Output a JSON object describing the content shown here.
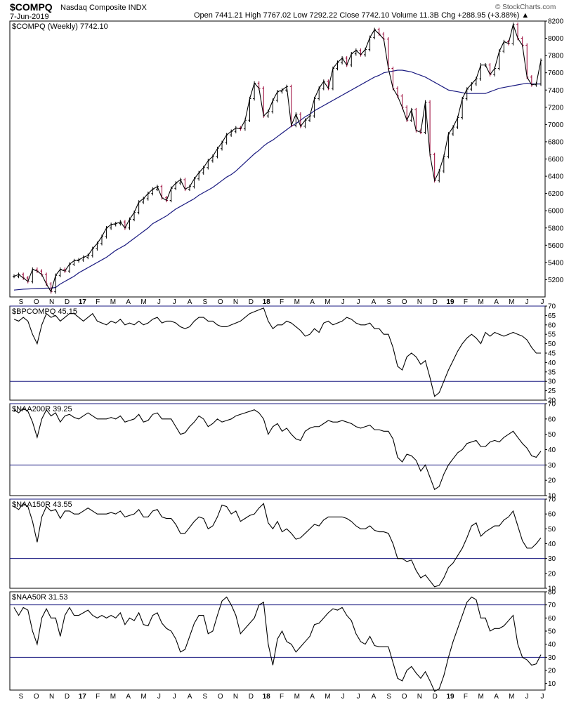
{
  "header": {
    "symbol": "$COMPQ",
    "name": "Nasdaq Composite INDX",
    "date": "7-Jun-2019",
    "quote": "Open 7441.21  High 7767.02  Low 7292.22  Close 7742.10  Volume 11.3B  Chg +288.95 (+3.88%) ▲",
    "source": "© StockCharts.com"
  },
  "chart_data": [
    {
      "type": "line",
      "title": "$COMPQ (Weekly) 7742.10",
      "ylim": [
        5000,
        8200
      ],
      "yticks": [
        5200,
        5400,
        5600,
        5800,
        6000,
        6200,
        6400,
        6600,
        6800,
        7000,
        7200,
        7400,
        7600,
        7800,
        8000,
        8200
      ],
      "series": [
        {
          "values": [
            5240,
            5260,
            5220,
            5180,
            5320,
            5300,
            5260,
            5150,
            5060,
            5250,
            5320,
            5300,
            5380,
            5420,
            5430,
            5460,
            5480,
            5560,
            5620,
            5700,
            5800,
            5840,
            5850,
            5870,
            5800,
            5900,
            5980,
            6100,
            6140,
            6200,
            6250,
            6280,
            6150,
            6120,
            6260,
            6320,
            6360,
            6250,
            6280,
            6370,
            6440,
            6500,
            6580,
            6630,
            6720,
            6790,
            6880,
            6920,
            6960,
            6950,
            7050,
            7300,
            7480,
            7420,
            7100,
            7150,
            7280,
            7380,
            7400,
            7440,
            6990,
            7120,
            6980,
            7050,
            7100,
            7300,
            7420,
            7500,
            7420,
            7650,
            7720,
            7770,
            7690,
            7820,
            7860,
            7810,
            7870,
            8010,
            8100,
            8050,
            7990,
            7650,
            7420,
            7330,
            7200,
            7050,
            7170,
            6930,
            6910,
            7260,
            6650,
            6350,
            6460,
            6630,
            6890,
            6970,
            7080,
            7300,
            7410,
            7470,
            7530,
            7690,
            7690,
            7580,
            7650,
            7850,
            7960,
            7940,
            8160,
            8000,
            7920,
            7550,
            7460,
            7470,
            7743
          ]
        },
        {
          "values": [
            5080,
            5085,
            5090,
            5092,
            5095,
            5098,
            5100,
            5102,
            5103,
            5110,
            5150,
            5180,
            5210,
            5240,
            5280,
            5310,
            5340,
            5370,
            5400,
            5430,
            5460,
            5500,
            5540,
            5570,
            5600,
            5640,
            5680,
            5720,
            5760,
            5800,
            5850,
            5880,
            5910,
            5940,
            5980,
            6020,
            6050,
            6080,
            6110,
            6140,
            6180,
            6210,
            6240,
            6270,
            6310,
            6350,
            6390,
            6420,
            6460,
            6510,
            6560,
            6610,
            6660,
            6700,
            6750,
            6790,
            6820,
            6860,
            6900,
            6940,
            6980,
            7010,
            7050,
            7090,
            7120,
            7160,
            7190,
            7220,
            7250,
            7280,
            7310,
            7340,
            7370,
            7400,
            7430,
            7460,
            7490,
            7520,
            7550,
            7570,
            7600,
            7610,
            7620,
            7630,
            7630,
            7620,
            7610,
            7590,
            7570,
            7550,
            7520,
            7490,
            7460,
            7430,
            7400,
            7390,
            7380,
            7370,
            7360,
            7360,
            7360,
            7360,
            7360,
            7380,
            7400,
            7420,
            7430,
            7440,
            7450,
            7460,
            7470,
            7480,
            7470,
            7470,
            7470
          ]
        }
      ]
    },
    {
      "type": "line",
      "title": "$BPCOMPQ 45.15",
      "ylim": [
        20,
        70
      ],
      "yticks": [
        20,
        25,
        30,
        35,
        40,
        45,
        50,
        55,
        60,
        65,
        70
      ],
      "series": [
        {
          "values": [
            63,
            62,
            64,
            62,
            55,
            50,
            60,
            66,
            64,
            65,
            62,
            64,
            66,
            66,
            64,
            62,
            64,
            66,
            62,
            61,
            60,
            62,
            61,
            63,
            60,
            61,
            60,
            62,
            60,
            61,
            63,
            64,
            61,
            62,
            62,
            61,
            59,
            58,
            59,
            62,
            64,
            64,
            62,
            62,
            60,
            59,
            59,
            60,
            61,
            62,
            64,
            66,
            67,
            68,
            69,
            62,
            58,
            60,
            60,
            62,
            61,
            59,
            57,
            54,
            55,
            58,
            56,
            61,
            62,
            60,
            61,
            62,
            64,
            63,
            61,
            60,
            60,
            61,
            58,
            58,
            55,
            55,
            48,
            38,
            36,
            43,
            45,
            43,
            39,
            41,
            32,
            22,
            24,
            30,
            36,
            41,
            46,
            50,
            53,
            55,
            53,
            50,
            56,
            54,
            56,
            55,
            54,
            55,
            56,
            55,
            54,
            52,
            48,
            45,
            45
          ]
        }
      ]
    },
    {
      "type": "line",
      "title": "$NAA200R 39.25",
      "ylim": [
        10,
        70
      ],
      "yticks": [
        10,
        20,
        30,
        40,
        50,
        60,
        70
      ],
      "series": [
        {
          "values": [
            66,
            64,
            67,
            65,
            58,
            48,
            60,
            66,
            62,
            64,
            58,
            62,
            63,
            61,
            60,
            62,
            64,
            62,
            60,
            60,
            60,
            61,
            60,
            62,
            58,
            59,
            60,
            63,
            58,
            59,
            63,
            64,
            60,
            60,
            60,
            55,
            50,
            51,
            55,
            58,
            62,
            60,
            55,
            57,
            60,
            58,
            59,
            60,
            62,
            63,
            64,
            65,
            66,
            64,
            60,
            50,
            55,
            57,
            52,
            54,
            50,
            47,
            46,
            52,
            54,
            55,
            55,
            57,
            59,
            58,
            58,
            59,
            58,
            57,
            55,
            54,
            55,
            56,
            53,
            53,
            52,
            52,
            47,
            35,
            32,
            37,
            36,
            33,
            26,
            30,
            22,
            14,
            16,
            24,
            30,
            34,
            38,
            40,
            44,
            45,
            46,
            42,
            42,
            45,
            46,
            45,
            48,
            50,
            52,
            48,
            44,
            41,
            36,
            35,
            39
          ]
        }
      ]
    },
    {
      "type": "line",
      "title": "$NAA150R 43.55",
      "ylim": [
        10,
        70
      ],
      "yticks": [
        10,
        20,
        30,
        40,
        50,
        60,
        70
      ],
      "series": [
        {
          "values": [
            65,
            63,
            67,
            65,
            55,
            41,
            58,
            65,
            62,
            63,
            57,
            62,
            62,
            60,
            60,
            62,
            64,
            62,
            60,
            60,
            60,
            61,
            60,
            62,
            58,
            59,
            60,
            63,
            58,
            58,
            62,
            63,
            58,
            57,
            57,
            53,
            47,
            47,
            51,
            55,
            58,
            57,
            50,
            52,
            58,
            66,
            65,
            60,
            62,
            55,
            57,
            59,
            60,
            64,
            67,
            54,
            50,
            55,
            48,
            50,
            47,
            43,
            44,
            47,
            50,
            53,
            52,
            56,
            58,
            58,
            58,
            58,
            57,
            55,
            52,
            50,
            50,
            52,
            49,
            48,
            48,
            47,
            40,
            30,
            30,
            28,
            29,
            22,
            17,
            19,
            15,
            11,
            12,
            17,
            24,
            27,
            32,
            37,
            44,
            52,
            54,
            45,
            48,
            50,
            52,
            52,
            56,
            58,
            62,
            52,
            42,
            37,
            37,
            40,
            44
          ]
        }
      ]
    },
    {
      "type": "line",
      "title": "$NAA50R 31.53",
      "ylim": [
        5,
        80
      ],
      "yticks": [
        10,
        20,
        30,
        40,
        50,
        60,
        70,
        80
      ],
      "series": [
        {
          "values": [
            68,
            62,
            68,
            66,
            50,
            40,
            60,
            67,
            60,
            60,
            46,
            62,
            68,
            62,
            62,
            64,
            66,
            62,
            60,
            62,
            60,
            62,
            60,
            64,
            55,
            60,
            58,
            64,
            55,
            54,
            62,
            64,
            56,
            52,
            50,
            44,
            34,
            36,
            46,
            56,
            62,
            62,
            48,
            50,
            62,
            73,
            76,
            70,
            62,
            48,
            52,
            56,
            60,
            70,
            72,
            40,
            24,
            44,
            50,
            42,
            40,
            34,
            38,
            42,
            46,
            55,
            56,
            60,
            64,
            67,
            66,
            68,
            62,
            58,
            48,
            42,
            40,
            46,
            39,
            38,
            38,
            38,
            26,
            14,
            12,
            20,
            23,
            18,
            14,
            19,
            12,
            4,
            6,
            16,
            30,
            42,
            52,
            62,
            72,
            76,
            74,
            60,
            60,
            50,
            52,
            52,
            54,
            58,
            62,
            40,
            30,
            28,
            24,
            25,
            32
          ]
        }
      ]
    }
  ],
  "xaxis": {
    "labels": [
      "S",
      "O",
      "N",
      "D",
      "17",
      "F",
      "M",
      "A",
      "M",
      "J",
      "J",
      "A",
      "S",
      "O",
      "N",
      "D",
      "18",
      "F",
      "M",
      "A",
      "M",
      "J",
      "J",
      "A",
      "S",
      "O",
      "N",
      "D",
      "19",
      "F",
      "M",
      "A",
      "M",
      "J",
      "J"
    ],
    "bold": [
      "17",
      "18",
      "19"
    ]
  },
  "colors": {
    "price": "#000000",
    "down_bar": "#990033",
    "moving_average": "#1a1a80",
    "reference_line": "#1a1a80",
    "frame": "#000000"
  }
}
